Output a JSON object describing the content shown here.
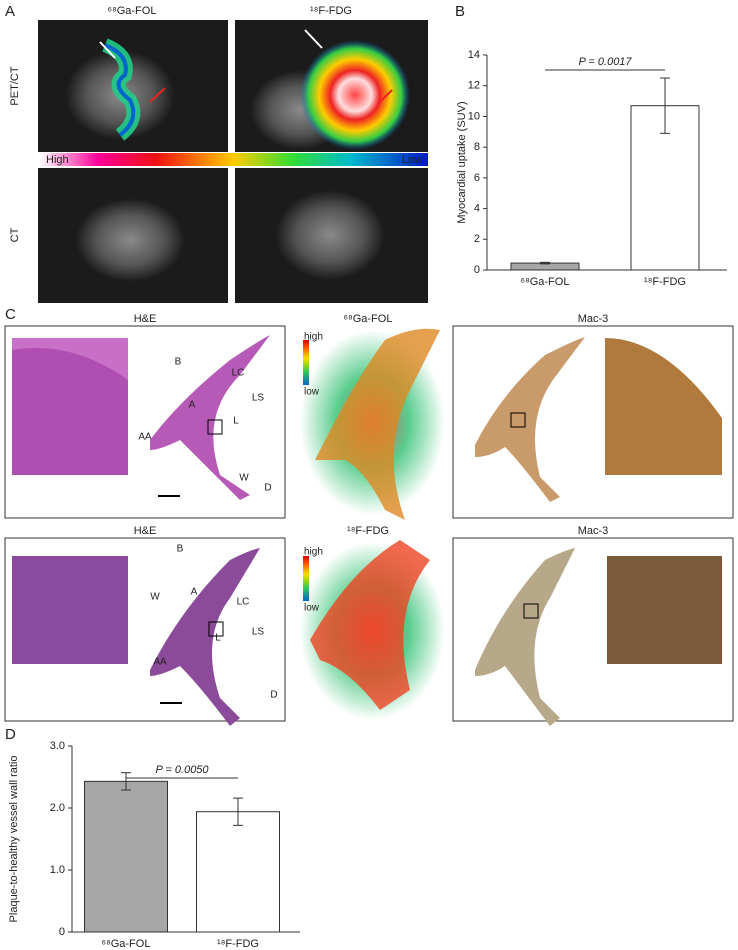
{
  "panel_labels": [
    "A",
    "B",
    "C",
    "D"
  ],
  "panel_a": {
    "columns": [
      "⁶⁸Ga-FOL",
      "¹⁸F-FDG"
    ],
    "rows": [
      "PET/CT",
      "CT"
    ],
    "colorbar": {
      "high": "High",
      "low": "Low"
    }
  },
  "panel_c": {
    "rows": [
      {
        "titles": [
          "H&E",
          "⁶⁸Ga-FOL",
          "Mac-3"
        ],
        "annotations": [
          "B",
          "LC",
          "LS",
          "A",
          "L",
          "AA",
          "W",
          "D"
        ],
        "scale": {
          "high": "high",
          "low": "low"
        }
      },
      {
        "titles": [
          "H&E",
          "¹⁸F-FDG",
          "Mac-3"
        ],
        "annotations": [
          "B",
          "W",
          "A",
          "LC",
          "L",
          "LS",
          "AA",
          "D"
        ],
        "scale": {
          "high": "high",
          "low": "low"
        }
      }
    ]
  },
  "chart_data": [
    {
      "type": "bar",
      "y_label": "Myocardial uptake (SUV)",
      "categories": [
        "⁶⁸Ga-FOL",
        "¹⁸F-FDG"
      ],
      "values": [
        0.45,
        10.7
      ],
      "errors": [
        0.05,
        1.8
      ],
      "colors": [
        "#a6a6a6",
        "#ffffff"
      ],
      "ylim": [
        0,
        14
      ],
      "yticks": [
        0,
        2,
        4,
        6,
        8,
        10,
        12,
        14
      ],
      "annotation": "P = 0.0017"
    },
    {
      "type": "bar",
      "y_label": "Plaque-to-healthy vessel wall ratio",
      "categories": [
        "⁶⁸Ga-FOL",
        "¹⁸F-FDG"
      ],
      "values": [
        2.43,
        1.94
      ],
      "errors": [
        0.14,
        0.22
      ],
      "colors": [
        "#a6a6a6",
        "#ffffff"
      ],
      "ylim": [
        0,
        3
      ],
      "yticks": [
        0,
        {
          "value": 1,
          "label": "1.0"
        },
        {
          "value": 2,
          "label": "2.0"
        },
        {
          "value": 3,
          "label": "3.0"
        }
      ],
      "annotation": "P = 0.0050"
    }
  ]
}
